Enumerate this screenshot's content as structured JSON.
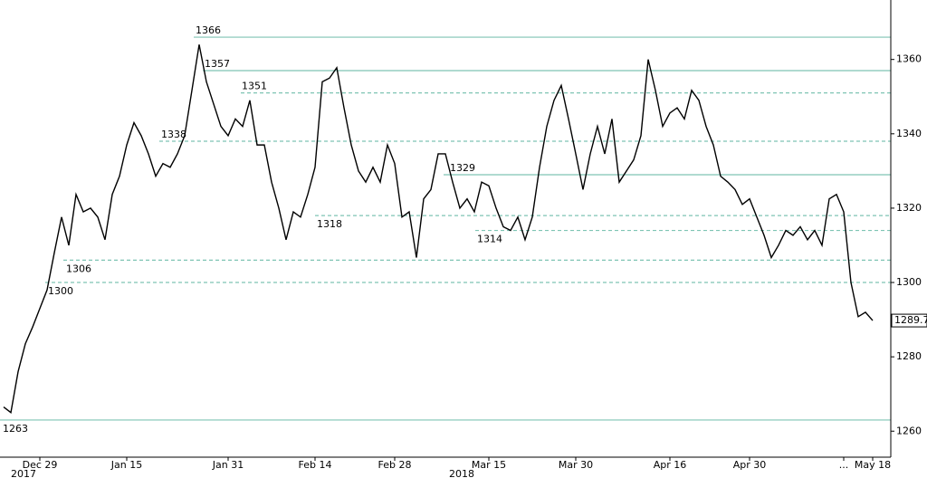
{
  "chart_data": {
    "type": "line",
    "color": "#000000",
    "categories": [
      null,
      null,
      null,
      null,
      null,
      "Dec 29",
      null,
      null,
      null,
      null,
      null,
      null,
      null,
      null,
      null,
      null,
      null,
      "Jan 15",
      null,
      null,
      null,
      null,
      null,
      null,
      null,
      null,
      null,
      null,
      null,
      null,
      null,
      "Jan 31",
      null,
      null,
      null,
      null,
      null,
      null,
      null,
      null,
      null,
      null,
      null,
      "Feb 14",
      null,
      null,
      null,
      null,
      null,
      null,
      null,
      null,
      null,
      null,
      "Feb 28",
      null,
      null,
      null,
      null,
      null,
      null,
      null,
      null,
      null,
      null,
      null,
      null,
      "Mar 15",
      null,
      null,
      null,
      null,
      null,
      null,
      null,
      null,
      null,
      null,
      null,
      "Mar 30",
      null,
      null,
      null,
      null,
      null,
      null,
      null,
      null,
      null,
      null,
      null,
      null,
      "Apr 16",
      null,
      null,
      null,
      null,
      null,
      null,
      null,
      null,
      null,
      null,
      "Apr 30",
      null,
      null,
      null,
      null,
      null,
      null,
      null,
      null,
      null,
      null,
      null,
      null,
      "...",
      null,
      null,
      null,
      "May 18"
    ],
    "values": [
      1266.5,
      1265,
      1276,
      1283.5,
      1288,
      1293,
      1298,
      1308,
      1317.6,
      1310,
      1323.7,
      1319,
      1320,
      1317.6,
      1311.5,
      1323.7,
      1328.6,
      1337,
      1343,
      1339.5,
      1334.6,
      1328.6,
      1332,
      1331,
      1334.6,
      1339.5,
      1351.7,
      1364,
      1354,
      1348,
      1342,
      1339.5,
      1344,
      1342,
      1349,
      1337,
      1337,
      1327,
      1320,
      1311.5,
      1319,
      1317.6,
      1323.7,
      1331,
      1354,
      1355,
      1357.8,
      1347,
      1337,
      1330,
      1327,
      1331,
      1327,
      1337,
      1332,
      1317.6,
      1319,
      1306.7,
      1322.5,
      1325,
      1334.6,
      1334.6,
      1327,
      1320,
      1322.5,
      1319,
      1327,
      1326,
      1320,
      1315,
      1314,
      1317.6,
      1311.5,
      1317.6,
      1331,
      1342,
      1349,
      1353,
      1344,
      1334.6,
      1325,
      1334.6,
      1342,
      1334.6,
      1344,
      1327,
      1330,
      1333,
      1339.5,
      1360,
      1351.7,
      1342,
      1345.6,
      1347,
      1344,
      1351.7,
      1349,
      1342,
      1337,
      1328.6,
      1327,
      1325,
      1321,
      1322.5,
      1317.6,
      1312.7,
      1306.7,
      1310,
      1314,
      1312.7,
      1315,
      1311.5,
      1314,
      1310,
      1322.5,
      1323.7,
      1319,
      1300,
      1290.8,
      1292,
      1289.76
    ],
    "year_labels": [
      "2017",
      "2018"
    ],
    "ylim": [
      1253,
      1376
    ],
    "yticks": [
      1260,
      1280,
      1300,
      1320,
      1340,
      1360
    ],
    "reference_lines": [
      {
        "value": 1366,
        "style": "solid"
      },
      {
        "value": 1357,
        "style": "solid"
      },
      {
        "value": 1351,
        "style": "dashed"
      },
      {
        "value": 1338,
        "style": "dashed"
      },
      {
        "value": 1329,
        "style": "solid"
      },
      {
        "value": 1318,
        "style": "dashed"
      },
      {
        "value": 1314,
        "style": "dashed"
      },
      {
        "value": 1306,
        "style": "dashed"
      },
      {
        "value": 1300,
        "style": "dashed"
      },
      {
        "value": 1263,
        "style": "solid"
      }
    ],
    "reference_color": "#7fc4b4"
  }
}
